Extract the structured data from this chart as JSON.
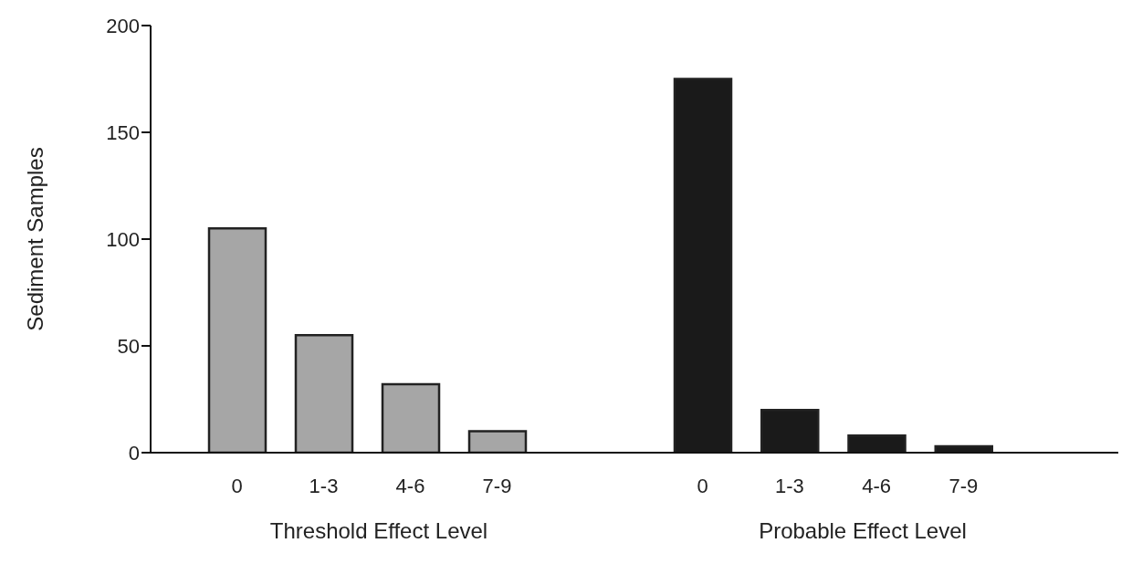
{
  "chart_data": [
    {
      "type": "bar",
      "categories": [
        "0",
        "1-3",
        "4-6",
        "7-9"
      ],
      "values": [
        105,
        55,
        32,
        10
      ],
      "color": "#a6a6a6",
      "xlabel": "Threshold Effect Level",
      "ylabel": "Sediment Samples",
      "ylim": [
        0,
        200
      ],
      "yticks": [
        0,
        50,
        100,
        150,
        200
      ],
      "grid": false,
      "legend": false
    },
    {
      "type": "bar",
      "categories": [
        "0",
        "1-3",
        "4-6",
        "7-9"
      ],
      "values": [
        175,
        20,
        8,
        3
      ],
      "color": "#1a1a1a",
      "xlabel": "Probable Effect Level",
      "ylim": [
        0,
        200
      ],
      "yticks": [
        0,
        50,
        100,
        150,
        200
      ],
      "grid": false,
      "legend": false,
      "tick_labels": "x"
    }
  ]
}
